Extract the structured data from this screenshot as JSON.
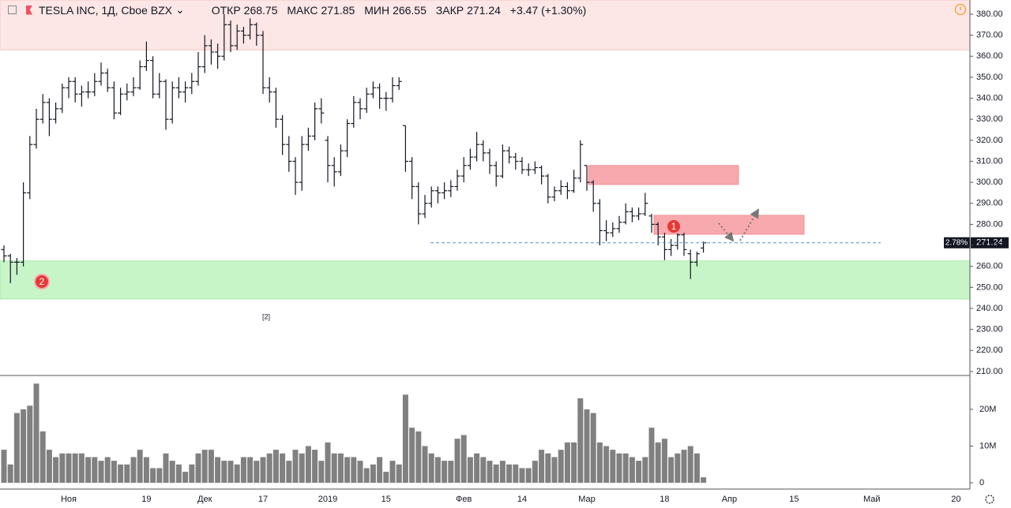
{
  "header": {
    "symbol": "TESLA INC, 1Д, Cboe BZX",
    "open_label": "ОТКР",
    "high_label": "МАКС",
    "low_label": "МИН",
    "close_label": "ЗАКР",
    "change": "+3.47 (+1.30%)"
  },
  "chart_data": {
    "type": "ohlc",
    "ylim": [
      208.1,
      386.75
    ],
    "yticks": [
      {
        "value": 380,
        "label": "380.00"
      },
      {
        "value": 370,
        "label": "370.00"
      },
      {
        "value": 360,
        "label": "360.00"
      },
      {
        "value": 350,
        "label": "350.00"
      },
      {
        "value": 340,
        "label": "340.00"
      },
      {
        "value": 330,
        "label": "330.00"
      },
      {
        "value": 320,
        "label": "320.00"
      },
      {
        "value": 310,
        "label": "310.00"
      },
      {
        "value": 300,
        "label": "300.00"
      },
      {
        "value": 290,
        "label": "290.00"
      },
      {
        "value": 280,
        "label": "280.00"
      },
      {
        "value": 270,
        "label": "270.00"
      },
      {
        "value": 260,
        "label": "260.00"
      },
      {
        "value": 250,
        "label": "250.00"
      },
      {
        "value": 240,
        "label": "240.00"
      },
      {
        "value": 230,
        "label": "230.00"
      },
      {
        "value": 220,
        "label": "220.00"
      },
      {
        "value": 210,
        "label": "210.00"
      }
    ],
    "color": "#131722",
    "price_tag_pct": "2.78%",
    "categories": [
      null,
      null,
      null,
      null,
      null,
      null,
      null,
      null,
      null,
      null,
      "Ноя",
      null,
      null,
      null,
      null,
      null,
      null,
      null,
      null,
      null,
      null,
      null,
      "19",
      null,
      null,
      null,
      null,
      null,
      null,
      null,
      null,
      "Дек",
      null,
      null,
      null,
      null,
      null,
      null,
      null,
      null,
      "17",
      null,
      null,
      null,
      null,
      null,
      null,
      null,
      null,
      null,
      "2019",
      null,
      null,
      null,
      null,
      null,
      null,
      null,
      null,
      "15",
      null,
      null,
      null,
      null,
      null,
      null,
      null,
      null,
      null,
      null,
      null,
      "Фев",
      null,
      null,
      null,
      null,
      null,
      null,
      null,
      null,
      "14",
      null,
      null,
      null,
      null,
      null,
      null,
      null,
      null,
      null,
      "Мар",
      null,
      null,
      null,
      null,
      null,
      null,
      null,
      null,
      null,
      null,
      null,
      "18",
      null,
      null,
      null,
      null,
      null,
      null,
      null,
      null,
      null,
      "Апр",
      null,
      null,
      null,
      null,
      null,
      null,
      null,
      null,
      null,
      "15",
      null,
      null,
      null,
      null,
      null,
      null,
      null,
      null,
      null,
      null,
      null,
      "Май",
      null,
      null,
      null,
      null,
      null,
      null,
      null,
      null,
      null,
      null,
      null,
      null,
      "20",
      null
    ],
    "ohlc": [
      [
        268,
        270,
        262,
        265
      ],
      [
        265,
        266,
        252,
        262
      ],
      [
        262,
        264,
        256,
        262
      ],
      [
        262,
        300,
        260,
        295
      ],
      [
        295,
        322,
        292,
        318
      ],
      [
        318,
        335,
        316,
        330
      ],
      [
        330,
        342,
        328,
        338
      ],
      [
        338,
        340,
        322,
        330
      ],
      [
        330,
        338,
        328,
        335
      ],
      [
        335,
        347,
        333,
        345
      ],
      [
        345,
        350,
        340,
        348
      ],
      [
        348,
        350,
        338,
        342
      ],
      [
        342,
        346,
        336,
        343
      ],
      [
        343,
        348,
        340,
        343
      ],
      [
        343,
        352,
        341,
        348
      ],
      [
        348,
        357,
        346,
        352
      ],
      [
        352,
        354,
        343,
        345
      ],
      [
        345,
        348,
        330,
        333
      ],
      [
        333,
        345,
        332,
        342
      ],
      [
        342,
        347,
        339,
        343
      ],
      [
        343,
        350,
        341,
        345
      ],
      [
        345,
        358,
        344,
        355
      ],
      [
        355,
        367,
        353,
        358
      ],
      [
        358,
        360,
        340,
        342
      ],
      [
        342,
        352,
        340,
        348
      ],
      [
        348,
        349,
        325,
        330
      ],
      [
        330,
        348,
        328,
        345
      ],
      [
        345,
        350,
        340,
        343
      ],
      [
        343,
        348,
        338,
        345
      ],
      [
        345,
        352,
        342,
        348
      ],
      [
        348,
        362,
        346,
        355
      ],
      [
        355,
        370,
        352,
        365
      ],
      [
        365,
        368,
        356,
        362
      ],
      [
        362,
        366,
        354,
        360
      ],
      [
        360,
        380,
        358,
        375
      ],
      [
        375,
        377,
        362,
        365
      ],
      [
        365,
        375,
        363,
        372
      ],
      [
        372,
        374,
        366,
        370
      ],
      [
        370,
        378,
        368,
        375
      ],
      [
        375,
        376,
        365,
        370
      ],
      [
        370,
        372,
        342,
        345
      ],
      [
        345,
        350,
        338,
        343
      ],
      [
        343,
        345,
        326,
        330
      ],
      [
        330,
        332,
        313,
        318
      ],
      [
        318,
        322,
        305,
        310
      ],
      [
        310,
        312,
        294,
        300
      ],
      [
        300,
        322,
        296,
        318
      ],
      [
        318,
        326,
        315,
        322
      ],
      [
        322,
        338,
        320,
        335
      ],
      [
        335,
        340,
        328,
        333
      ],
      [
        320,
        322,
        300,
        308
      ],
      [
        308,
        312,
        298,
        305
      ],
      [
        305,
        318,
        303,
        315
      ],
      [
        315,
        330,
        312,
        328
      ],
      [
        328,
        341,
        326,
        338
      ],
      [
        338,
        340,
        330,
        335
      ],
      [
        335,
        345,
        333,
        342
      ],
      [
        342,
        348,
        340,
        345
      ],
      [
        345,
        347,
        335,
        340
      ],
      [
        340,
        343,
        334,
        340
      ],
      [
        340,
        350,
        338,
        346
      ],
      [
        346,
        350,
        344,
        348
      ],
      [
        327,
        327,
        305,
        310
      ],
      [
        310,
        312,
        292,
        298
      ],
      [
        298,
        300,
        280,
        285
      ],
      [
        285,
        294,
        283,
        290
      ],
      [
        290,
        298,
        288,
        296
      ],
      [
        296,
        298,
        290,
        295
      ],
      [
        295,
        300,
        292,
        296
      ],
      [
        296,
        301,
        293,
        298
      ],
      [
        298,
        306,
        296,
        303
      ],
      [
        303,
        312,
        300,
        308
      ],
      [
        308,
        316,
        306,
        312
      ],
      [
        312,
        324,
        310,
        318
      ],
      [
        318,
        320,
        310,
        314
      ],
      [
        314,
        316,
        304,
        308
      ],
      [
        308,
        310,
        298,
        303
      ],
      [
        303,
        318,
        302,
        315
      ],
      [
        315,
        317,
        309,
        312
      ],
      [
        312,
        314,
        306,
        310
      ],
      [
        310,
        312,
        304,
        306
      ],
      [
        306,
        309,
        303,
        306
      ],
      [
        306,
        310,
        304,
        307
      ],
      [
        307,
        308,
        299,
        303
      ],
      [
        303,
        304,
        290,
        293
      ],
      [
        293,
        298,
        291,
        296
      ],
      [
        296,
        301,
        294,
        298
      ],
      [
        298,
        300,
        292,
        296
      ],
      [
        296,
        306,
        295,
        302
      ],
      [
        302,
        320,
        300,
        318
      ],
      [
        308,
        308,
        296,
        300
      ],
      [
        300,
        301,
        286,
        290
      ],
      [
        290,
        292,
        270,
        277
      ],
      [
        277,
        282,
        272,
        276
      ],
      [
        276,
        281,
        274,
        278
      ],
      [
        278,
        284,
        276,
        281
      ],
      [
        281,
        290,
        280,
        286
      ],
      [
        286,
        288,
        281,
        284
      ],
      [
        284,
        288,
        282,
        285
      ],
      [
        285,
        295,
        284,
        290
      ],
      [
        284,
        285,
        276,
        280
      ],
      [
        280,
        281,
        270,
        274
      ],
      [
        274,
        276,
        263,
        268
      ],
      [
        268,
        273,
        265,
        270
      ],
      [
        270,
        278,
        268,
        275
      ],
      [
        275,
        276,
        265,
        268
      ],
      [
        266,
        268,
        254,
        262
      ],
      [
        262,
        267,
        260,
        266
      ],
      [
        268.75,
        271.85,
        266.55,
        271.24
      ],
      null,
      null,
      null,
      null,
      null,
      null,
      null,
      null,
      null,
      null,
      null,
      null,
      null,
      null,
      null,
      null,
      null,
      null,
      null,
      null,
      null,
      null,
      null,
      null,
      null,
      null,
      null,
      null,
      null,
      null,
      null,
      null,
      null,
      null,
      null,
      null,
      null,
      null,
      null,
      null
    ],
    "volume": {
      "color": "#808080",
      "ylim": [
        -1.7,
        29
      ],
      "yticks": [
        0,
        {
          "value": 10,
          "label": "10M"
        },
        {
          "value": 20,
          "label": "20M"
        }
      ],
      "values": [
        9,
        5,
        19,
        20,
        21,
        27,
        14,
        9,
        7,
        8,
        8,
        8,
        8,
        7,
        7,
        6,
        7,
        6,
        5,
        5,
        7,
        9,
        7,
        4,
        4,
        8,
        6,
        5,
        3,
        5,
        8,
        9,
        9,
        7,
        6,
        6,
        5,
        7,
        7,
        6,
        7,
        8,
        9,
        8,
        6,
        9,
        8,
        10,
        9,
        6,
        11,
        8,
        8,
        7,
        7,
        6,
        4,
        5,
        7,
        3,
        6,
        5,
        24,
        15,
        14,
        10,
        8,
        7,
        6,
        6,
        12,
        13,
        7,
        8,
        7,
        6,
        5,
        6,
        5,
        5,
        4,
        4,
        6,
        9,
        8,
        7,
        9,
        11,
        11,
        23,
        20,
        19,
        11,
        10,
        9,
        8,
        8,
        7,
        6,
        7,
        15,
        11,
        12,
        7,
        8,
        9,
        10,
        8,
        1.5,
        null,
        null,
        null,
        null,
        null,
        null,
        null,
        null,
        null,
        null,
        null,
        null,
        null,
        null,
        null,
        null,
        null,
        null,
        null,
        null,
        null,
        null,
        null,
        null,
        null,
        null,
        null,
        null,
        null,
        null,
        null,
        null,
        null,
        null,
        null,
        null,
        null,
        null,
        null,
        null
      ]
    },
    "zones": [
      {
        "from": 363,
        "to": 386.75,
        "color": "#fde6e6",
        "border": "#f6c5c5"
      },
      {
        "from": 244.5,
        "to": 262.6,
        "color": "#c8f5c8",
        "border": "#a9e8a9"
      },
      {
        "from": 299,
        "to": 308,
        "color": "#f8a9ad",
        "border": "#ef8f94"
      },
      {
        "from": 275.3,
        "to": 284.3,
        "color": "#f8a9ad",
        "border": "#ef8f94"
      }
    ],
    "annotations": [
      {
        "text": "1"
      },
      {
        "text": "2"
      },
      {
        "text": "[2]"
      }
    ]
  }
}
